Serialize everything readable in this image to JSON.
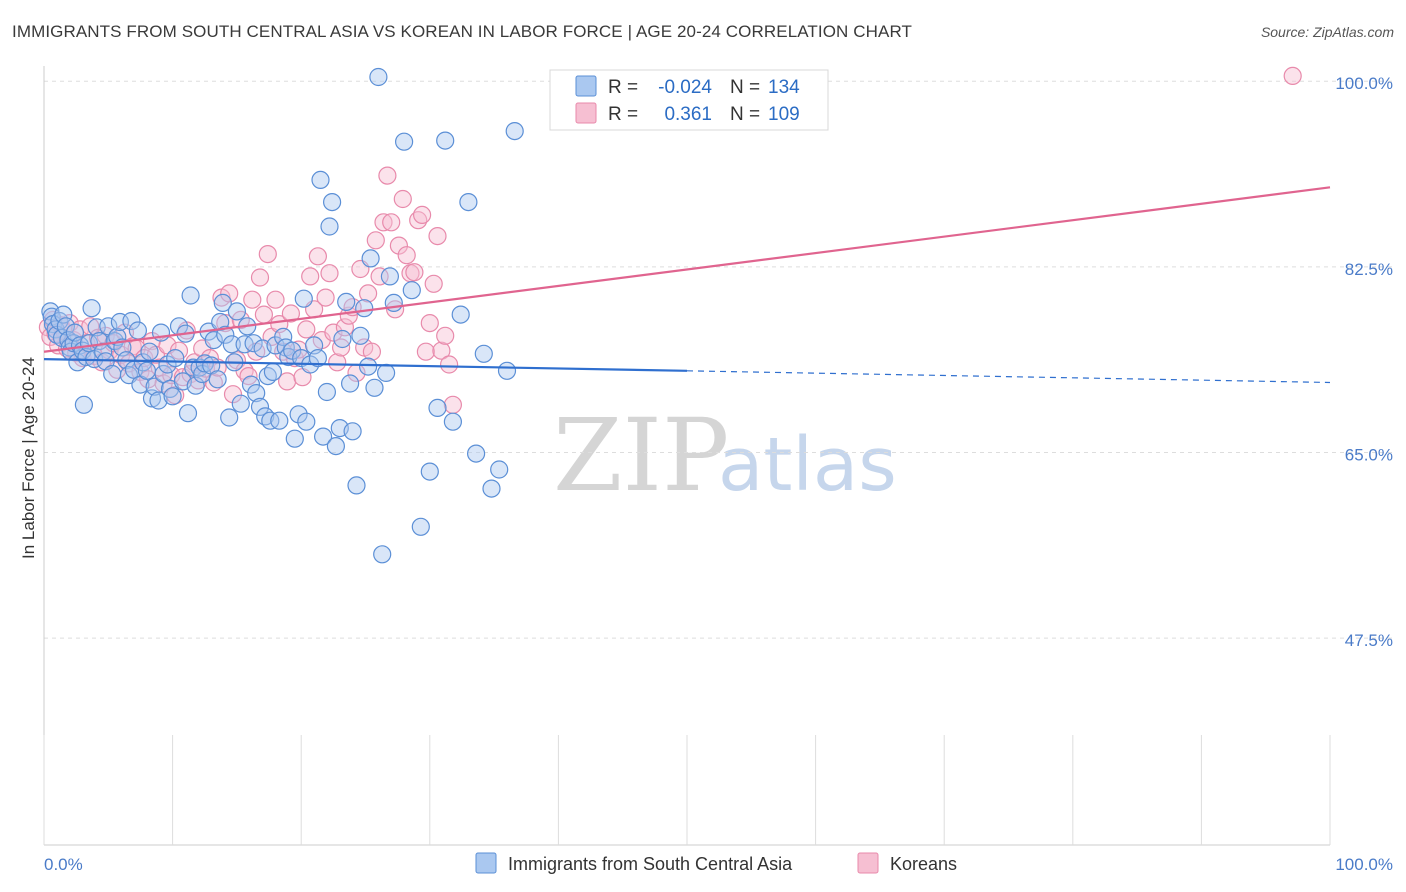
{
  "title": "IMMIGRANTS FROM SOUTH CENTRAL ASIA VS KOREAN IN LABOR FORCE | AGE 20-24 CORRELATION CHART",
  "source": "Source: ZipAtlas.com",
  "watermark": {
    "zip": "ZIP",
    "atlas": "atlas"
  },
  "legend_box": {
    "rows": [
      {
        "r_label": "R =",
        "r_value": "-0.024",
        "n_label": "N =",
        "n_value": "134"
      },
      {
        "r_label": "R =",
        "r_value": "0.361",
        "n_label": "N =",
        "n_value": "109"
      }
    ]
  },
  "bottom_legend": [
    "Immigrants from South Central Asia",
    "Koreans"
  ],
  "colors": {
    "blue_fill": "#aac8f0",
    "blue_stroke": "#5b8fd6",
    "blue_line": "#2f6fcf",
    "pink_fill": "#f6bfd2",
    "pink_stroke": "#e88aab",
    "pink_line": "#e0648f",
    "tick_text": "#4a7bc8",
    "grid": "#dddddd"
  },
  "chart_data": {
    "type": "scatter",
    "title": "IMMIGRANTS FROM SOUTH CENTRAL ASIA VS KOREAN IN LABOR FORCE | AGE 20-24 CORRELATION CHART",
    "xlabel": "",
    "ylabel": "In Labor Force | Age 20-24",
    "xlim": [
      0,
      100
    ],
    "ylim": [
      28,
      102
    ],
    "x_tick_labels": [
      "0.0%",
      "100.0%"
    ],
    "y_ticks": [
      100,
      82.5,
      65,
      47.5
    ],
    "y_tick_labels": [
      "100.0%",
      "82.5%",
      "65.0%",
      "47.5%"
    ],
    "grid": true,
    "legend_position": "top-center",
    "series": [
      {
        "name": "Immigrants from South Central Asia",
        "R": -0.024,
        "N": 134,
        "trend": {
          "x0": 0,
          "y0": 73.8,
          "x1": 100,
          "y1": 71.6,
          "solid_until_x": 50
        },
        "points": [
          [
            0.5,
            78.3
          ],
          [
            0.6,
            77.8
          ],
          [
            0.7,
            77.1
          ],
          [
            0.9,
            76.6
          ],
          [
            1.0,
            76.1
          ],
          [
            1.2,
            77.4
          ],
          [
            1.4,
            75.8
          ],
          [
            1.5,
            78.0
          ],
          [
            1.7,
            76.9
          ],
          [
            1.9,
            75.6
          ],
          [
            2.0,
            74.9
          ],
          [
            2.1,
            74.5
          ],
          [
            2.3,
            75.3
          ],
          [
            2.4,
            76.3
          ],
          [
            2.6,
            73.5
          ],
          [
            2.8,
            75.1
          ],
          [
            3.0,
            74.6
          ],
          [
            3.1,
            69.5
          ],
          [
            3.3,
            74.0
          ],
          [
            3.5,
            75.3
          ],
          [
            3.7,
            78.6
          ],
          [
            3.9,
            73.8
          ],
          [
            4.1,
            76.8
          ],
          [
            4.3,
            75.5
          ],
          [
            4.6,
            74.5
          ],
          [
            4.8,
            73.6
          ],
          [
            5.0,
            76.9
          ],
          [
            5.3,
            72.4
          ],
          [
            5.5,
            75.5
          ],
          [
            5.7,
            75.9
          ],
          [
            5.9,
            77.3
          ],
          [
            6.1,
            74.9
          ],
          [
            6.4,
            73.7
          ],
          [
            6.6,
            72.3
          ],
          [
            6.8,
            77.4
          ],
          [
            7.0,
            72.8
          ],
          [
            7.3,
            76.5
          ],
          [
            7.5,
            71.4
          ],
          [
            7.7,
            73.5
          ],
          [
            8.0,
            72.7
          ],
          [
            8.2,
            74.5
          ],
          [
            8.4,
            70.1
          ],
          [
            8.6,
            71.2
          ],
          [
            8.9,
            69.9
          ],
          [
            9.1,
            76.3
          ],
          [
            9.3,
            72.4
          ],
          [
            9.6,
            73.3
          ],
          [
            9.8,
            71.0
          ],
          [
            10.0,
            70.3
          ],
          [
            10.2,
            73.9
          ],
          [
            10.5,
            76.9
          ],
          [
            10.8,
            71.7
          ],
          [
            11.0,
            76.2
          ],
          [
            11.2,
            68.7
          ],
          [
            11.4,
            79.8
          ],
          [
            11.6,
            73.0
          ],
          [
            11.8,
            71.3
          ],
          [
            12.1,
            73.0
          ],
          [
            12.3,
            72.4
          ],
          [
            12.5,
            73.4
          ],
          [
            12.8,
            76.4
          ],
          [
            13.0,
            73.2
          ],
          [
            13.2,
            75.6
          ],
          [
            13.5,
            71.9
          ],
          [
            13.7,
            77.3
          ],
          [
            13.9,
            79.1
          ],
          [
            14.1,
            76.1
          ],
          [
            14.4,
            68.3
          ],
          [
            14.6,
            75.2
          ],
          [
            14.8,
            73.5
          ],
          [
            15.0,
            78.3
          ],
          [
            15.3,
            69.6
          ],
          [
            15.6,
            75.2
          ],
          [
            15.8,
            76.9
          ],
          [
            16.1,
            71.4
          ],
          [
            16.3,
            75.3
          ],
          [
            16.5,
            70.6
          ],
          [
            16.8,
            69.3
          ],
          [
            17.0,
            74.8
          ],
          [
            17.2,
            68.4
          ],
          [
            17.4,
            72.2
          ],
          [
            17.6,
            68.0
          ],
          [
            17.8,
            72.6
          ],
          [
            18.0,
            75.1
          ],
          [
            18.3,
            68.0
          ],
          [
            18.6,
            75.9
          ],
          [
            18.8,
            74.9
          ],
          [
            19.0,
            74.0
          ],
          [
            19.3,
            74.6
          ],
          [
            19.5,
            66.3
          ],
          [
            19.8,
            68.6
          ],
          [
            20.0,
            73.9
          ],
          [
            20.2,
            79.5
          ],
          [
            20.4,
            67.9
          ],
          [
            20.7,
            73.3
          ],
          [
            21.0,
            75.1
          ],
          [
            21.3,
            73.9
          ],
          [
            21.5,
            90.7
          ],
          [
            21.7,
            66.5
          ],
          [
            22.0,
            70.7
          ],
          [
            22.2,
            86.3
          ],
          [
            22.4,
            88.6
          ],
          [
            22.7,
            65.6
          ],
          [
            23.0,
            67.3
          ],
          [
            23.2,
            75.7
          ],
          [
            23.5,
            79.2
          ],
          [
            23.8,
            71.5
          ],
          [
            24.0,
            67.0
          ],
          [
            24.3,
            61.9
          ],
          [
            24.6,
            76.0
          ],
          [
            24.9,
            78.6
          ],
          [
            25.2,
            73.1
          ],
          [
            25.4,
            83.3
          ],
          [
            25.7,
            71.1
          ],
          [
            26.0,
            100.4
          ],
          [
            26.3,
            55.4
          ],
          [
            26.6,
            72.5
          ],
          [
            26.9,
            81.6
          ],
          [
            27.2,
            79.1
          ],
          [
            28.0,
            94.3
          ],
          [
            28.6,
            80.3
          ],
          [
            29.3,
            58.0
          ],
          [
            30.0,
            63.2
          ],
          [
            30.6,
            69.2
          ],
          [
            31.2,
            94.4
          ],
          [
            31.8,
            67.9
          ],
          [
            32.4,
            78.0
          ],
          [
            33.0,
            88.6
          ],
          [
            33.6,
            64.9
          ],
          [
            34.2,
            74.3
          ],
          [
            34.8,
            61.6
          ],
          [
            35.4,
            63.4
          ],
          [
            36.0,
            72.7
          ],
          [
            36.6,
            95.3
          ]
        ]
      },
      {
        "name": "Koreans",
        "R": 0.361,
        "N": 109,
        "trend": {
          "x0": 0,
          "y0": 74.5,
          "x1": 100,
          "y1": 90.0,
          "solid_until_x": 100
        },
        "points": [
          [
            0.3,
            76.8
          ],
          [
            0.5,
            75.9
          ],
          [
            0.7,
            77.5
          ],
          [
            0.9,
            76.2
          ],
          [
            1.1,
            75.1
          ],
          [
            1.3,
            77.0
          ],
          [
            1.6,
            76.4
          ],
          [
            1.8,
            74.8
          ],
          [
            2.0,
            77.2
          ],
          [
            2.3,
            75.6
          ],
          [
            2.5,
            74.4
          ],
          [
            2.8,
            76.6
          ],
          [
            3.0,
            73.9
          ],
          [
            3.3,
            75.3
          ],
          [
            3.6,
            76.9
          ],
          [
            3.9,
            74.1
          ],
          [
            4.2,
            75.8
          ],
          [
            4.5,
            73.5
          ],
          [
            4.8,
            76.0
          ],
          [
            5.1,
            74.6
          ],
          [
            5.4,
            75.3
          ],
          [
            5.7,
            72.8
          ],
          [
            6.0,
            74.2
          ],
          [
            6.3,
            76.3
          ],
          [
            6.6,
            73.4
          ],
          [
            6.9,
            75.0
          ],
          [
            7.2,
            74.8
          ],
          [
            7.5,
            72.6
          ],
          [
            7.8,
            73.9
          ],
          [
            8.1,
            71.9
          ],
          [
            8.4,
            75.5
          ],
          [
            8.7,
            74.2
          ],
          [
            9.0,
            73.0
          ],
          [
            9.3,
            71.5
          ],
          [
            9.6,
            75.1
          ],
          [
            9.9,
            72.3
          ],
          [
            10.2,
            70.4
          ],
          [
            10.5,
            74.6
          ],
          [
            10.8,
            72.1
          ],
          [
            11.1,
            76.5
          ],
          [
            11.4,
            72.4
          ],
          [
            11.7,
            73.5
          ],
          [
            12.0,
            71.8
          ],
          [
            12.3,
            74.8
          ],
          [
            12.6,
            72.9
          ],
          [
            12.9,
            73.9
          ],
          [
            13.2,
            71.6
          ],
          [
            13.5,
            73.0
          ],
          [
            13.8,
            79.6
          ],
          [
            14.1,
            77.2
          ],
          [
            14.4,
            80.0
          ],
          [
            14.7,
            70.5
          ],
          [
            15.0,
            73.7
          ],
          [
            15.3,
            77.5
          ],
          [
            15.6,
            72.7
          ],
          [
            15.9,
            72.2
          ],
          [
            16.2,
            79.4
          ],
          [
            16.5,
            74.5
          ],
          [
            16.8,
            81.5
          ],
          [
            17.1,
            78.0
          ],
          [
            17.4,
            83.7
          ],
          [
            17.7,
            75.9
          ],
          [
            18.0,
            79.4
          ],
          [
            18.3,
            77.1
          ],
          [
            18.6,
            74.5
          ],
          [
            18.9,
            71.7
          ],
          [
            19.2,
            78.1
          ],
          [
            19.5,
            73.9
          ],
          [
            19.8,
            74.7
          ],
          [
            20.1,
            72.1
          ],
          [
            20.4,
            76.6
          ],
          [
            20.7,
            81.6
          ],
          [
            21.0,
            78.5
          ],
          [
            21.3,
            83.5
          ],
          [
            21.6,
            75.6
          ],
          [
            21.9,
            79.6
          ],
          [
            22.2,
            81.9
          ],
          [
            22.5,
            76.3
          ],
          [
            22.8,
            73.5
          ],
          [
            23.1,
            74.9
          ],
          [
            23.4,
            76.8
          ],
          [
            23.7,
            77.9
          ],
          [
            24.0,
            78.7
          ],
          [
            24.3,
            72.5
          ],
          [
            24.6,
            82.3
          ],
          [
            24.9,
            74.9
          ],
          [
            25.2,
            80.0
          ],
          [
            25.5,
            74.5
          ],
          [
            25.8,
            85.0
          ],
          [
            26.1,
            81.6
          ],
          [
            26.4,
            86.7
          ],
          [
            26.7,
            91.1
          ],
          [
            27.0,
            86.7
          ],
          [
            27.3,
            78.5
          ],
          [
            27.6,
            84.5
          ],
          [
            27.9,
            88.9
          ],
          [
            28.2,
            83.6
          ],
          [
            28.5,
            81.9
          ],
          [
            28.8,
            82.0
          ],
          [
            29.1,
            86.9
          ],
          [
            29.4,
            87.4
          ],
          [
            29.7,
            74.5
          ],
          [
            30.0,
            77.2
          ],
          [
            30.3,
            80.9
          ],
          [
            30.6,
            85.4
          ],
          [
            30.9,
            74.6
          ],
          [
            31.2,
            76.0
          ],
          [
            31.5,
            73.3
          ],
          [
            31.8,
            69.5
          ],
          [
            97.1,
            100.5
          ]
        ]
      }
    ]
  }
}
